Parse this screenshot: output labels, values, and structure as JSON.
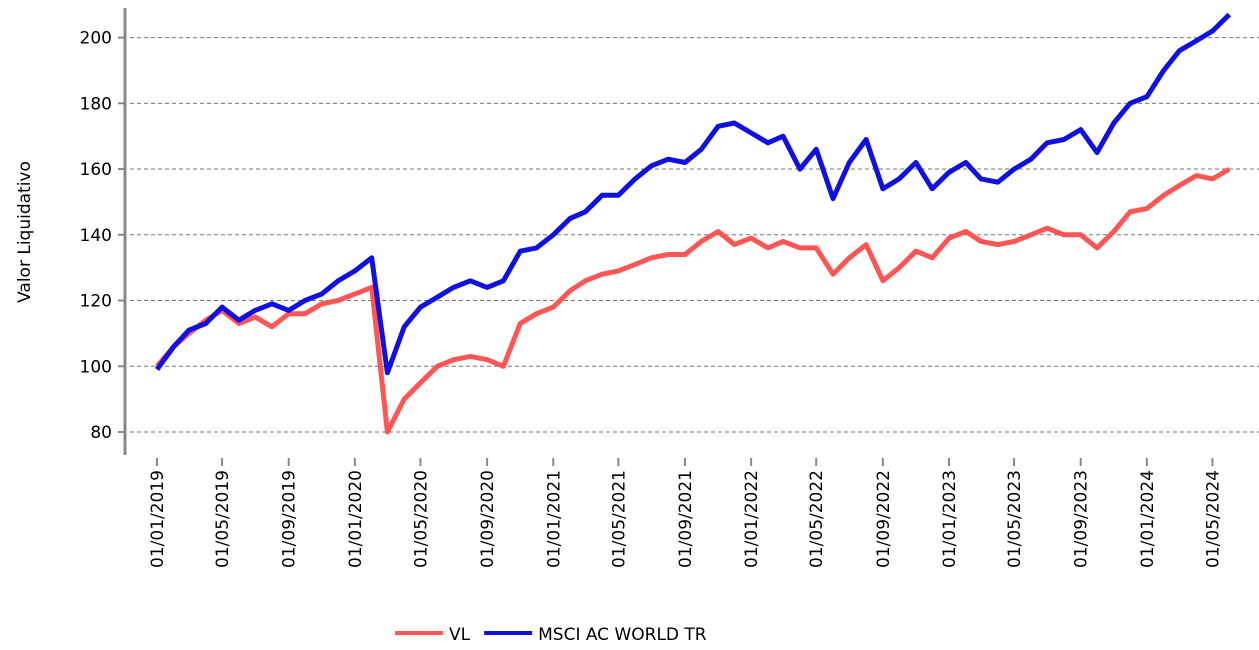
{
  "chart_data": {
    "type": "line",
    "y_label": "Valor Liquidativo",
    "x": [
      "01/01/2019",
      "01/02/2019",
      "01/03/2019",
      "01/04/2019",
      "01/05/2019",
      "01/06/2019",
      "01/07/2019",
      "01/08/2019",
      "01/09/2019",
      "01/10/2019",
      "01/11/2019",
      "01/12/2019",
      "01/01/2020",
      "01/02/2020",
      "01/03/2020",
      "01/04/2020",
      "01/05/2020",
      "01/06/2020",
      "01/07/2020",
      "01/08/2020",
      "01/09/2020",
      "01/10/2020",
      "01/11/2020",
      "01/12/2020",
      "01/01/2021",
      "01/02/2021",
      "01/03/2021",
      "01/04/2021",
      "01/05/2021",
      "01/06/2021",
      "01/07/2021",
      "01/08/2021",
      "01/09/2021",
      "01/10/2021",
      "01/11/2021",
      "01/12/2021",
      "01/01/2022",
      "01/02/2022",
      "01/03/2022",
      "01/04/2022",
      "01/05/2022",
      "01/06/2022",
      "01/07/2022",
      "01/08/2022",
      "01/09/2022",
      "01/10/2022",
      "01/11/2022",
      "01/12/2022",
      "01/01/2023",
      "01/02/2023",
      "01/03/2023",
      "01/04/2023",
      "01/05/2023",
      "01/06/2023",
      "01/07/2023",
      "01/08/2023",
      "01/09/2023",
      "01/10/2023",
      "01/11/2023",
      "01/12/2023",
      "01/01/2024",
      "01/02/2024",
      "01/03/2024",
      "01/04/2024",
      "01/05/2024",
      "01/06/2024"
    ],
    "series": [
      {
        "name": "VL",
        "color": "#ff5555",
        "values": [
          100,
          106,
          110,
          114,
          117,
          113,
          115,
          112,
          116,
          116,
          119,
          120,
          122,
          124,
          80,
          90,
          95,
          100,
          102,
          103,
          102,
          100,
          113,
          116,
          118,
          123,
          126,
          128,
          129,
          131,
          133,
          134,
          134,
          138,
          141,
          137,
          139,
          136,
          138,
          136,
          136,
          128,
          133,
          137,
          126,
          130,
          135,
          133,
          139,
          141,
          138,
          137,
          138,
          140,
          142,
          140,
          140,
          136,
          141,
          147,
          148,
          152,
          155,
          158,
          157,
          160
        ]
      },
      {
        "name": "MSCI AC WORLD TR",
        "color": "#1010e0",
        "values": [
          99,
          106,
          111,
          113,
          118,
          114,
          117,
          119,
          117,
          120,
          122,
          126,
          129,
          133,
          98,
          112,
          118,
          121,
          124,
          126,
          124,
          126,
          135,
          136,
          140,
          145,
          147,
          152,
          152,
          157,
          161,
          163,
          162,
          166,
          173,
          174,
          171,
          168,
          170,
          160,
          166,
          151,
          162,
          169,
          154,
          157,
          162,
          154,
          159,
          162,
          157,
          156,
          160,
          163,
          168,
          169,
          172,
          165,
          174,
          180,
          182,
          190,
          196,
          199,
          202,
          207
        ]
      }
    ],
    "ylim": [
      73,
      209
    ],
    "yticks": [
      80,
      100,
      120,
      140,
      160,
      180,
      200
    ],
    "xticks": [
      "01/01/2019",
      "01/05/2019",
      "01/09/2019",
      "01/01/2020",
      "01/05/2020",
      "01/09/2020",
      "01/01/2021",
      "01/05/2021",
      "01/09/2021",
      "01/01/2022",
      "01/05/2022",
      "01/09/2022",
      "01/01/2023",
      "01/05/2023",
      "01/09/2023",
      "01/01/2024",
      "01/05/2024"
    ],
    "grid": true
  }
}
